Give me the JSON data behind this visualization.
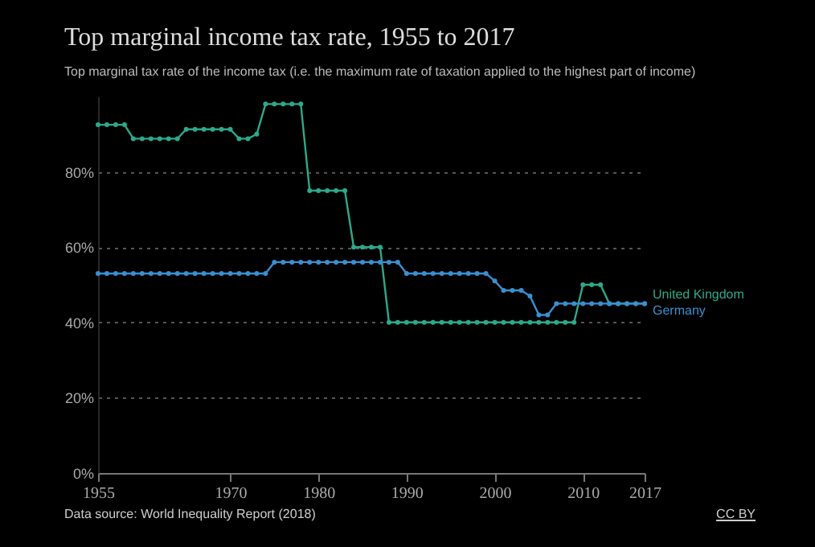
{
  "chart_data": {
    "type": "line",
    "title": "Top marginal income tax rate, 1955 to 2017",
    "subtitle": "Top marginal tax rate of the income tax (i.e. the maximum rate of taxation applied to the highest part of income)",
    "x": [
      1955,
      1956,
      1957,
      1958,
      1959,
      1960,
      1961,
      1962,
      1963,
      1964,
      1965,
      1966,
      1967,
      1968,
      1969,
      1970,
      1971,
      1972,
      1973,
      1974,
      1975,
      1976,
      1977,
      1978,
      1979,
      1980,
      1981,
      1982,
      1983,
      1984,
      1985,
      1986,
      1987,
      1988,
      1989,
      1990,
      1991,
      1992,
      1993,
      1994,
      1995,
      1996,
      1997,
      1998,
      1999,
      2000,
      2001,
      2002,
      2003,
      2004,
      2005,
      2006,
      2007,
      2008,
      2009,
      2010,
      2011,
      2012,
      2013,
      2014,
      2015,
      2016,
      2017
    ],
    "series": [
      {
        "name": "United Kingdom",
        "color": "#2fa88a",
        "values": [
          92.5,
          92.5,
          92.5,
          92.5,
          88.8,
          88.8,
          88.8,
          88.8,
          88.8,
          88.8,
          91.3,
          91.3,
          91.3,
          91.3,
          91.3,
          91.3,
          88.8,
          88.8,
          90,
          98,
          98,
          98,
          98,
          98,
          75,
          75,
          75,
          75,
          75,
          60,
          60,
          60,
          60,
          40,
          40,
          40,
          40,
          40,
          40,
          40,
          40,
          40,
          40,
          40,
          40,
          40,
          40,
          40,
          40,
          40,
          40,
          40,
          40,
          40,
          40,
          50,
          50,
          50,
          45,
          45,
          45,
          45,
          45
        ]
      },
      {
        "name": "Germany",
        "color": "#3a8fd0",
        "values": [
          53,
          53,
          53,
          53,
          53,
          53,
          53,
          53,
          53,
          53,
          53,
          53,
          53,
          53,
          53,
          53,
          53,
          53,
          53,
          53,
          56,
          56,
          56,
          56,
          56,
          56,
          56,
          56,
          56,
          56,
          56,
          56,
          56,
          56,
          56,
          53,
          53,
          53,
          53,
          53,
          53,
          53,
          53,
          53,
          53,
          51,
          48.5,
          48.5,
          48.5,
          47,
          42,
          42,
          45,
          45,
          45,
          45,
          45,
          45,
          45,
          45,
          45,
          45,
          45
        ]
      }
    ],
    "xlim": [
      1955,
      2017
    ],
    "xticks": [
      1955,
      1970,
      1980,
      1990,
      2000,
      2010,
      2017
    ],
    "ylim": [
      0,
      100
    ],
    "yticks": [
      {
        "value": 0,
        "label": "0%"
      },
      {
        "value": 20,
        "label": "20%"
      },
      {
        "value": 40,
        "label": "40%"
      },
      {
        "value": 60,
        "label": "60%"
      },
      {
        "value": 80,
        "label": "80%"
      }
    ],
    "grid": "y",
    "legend": "right",
    "marker": "circle",
    "line_style": "solid",
    "annotations": [
      "Data source: World Inequality Report (2018)",
      "CC BY"
    ]
  }
}
